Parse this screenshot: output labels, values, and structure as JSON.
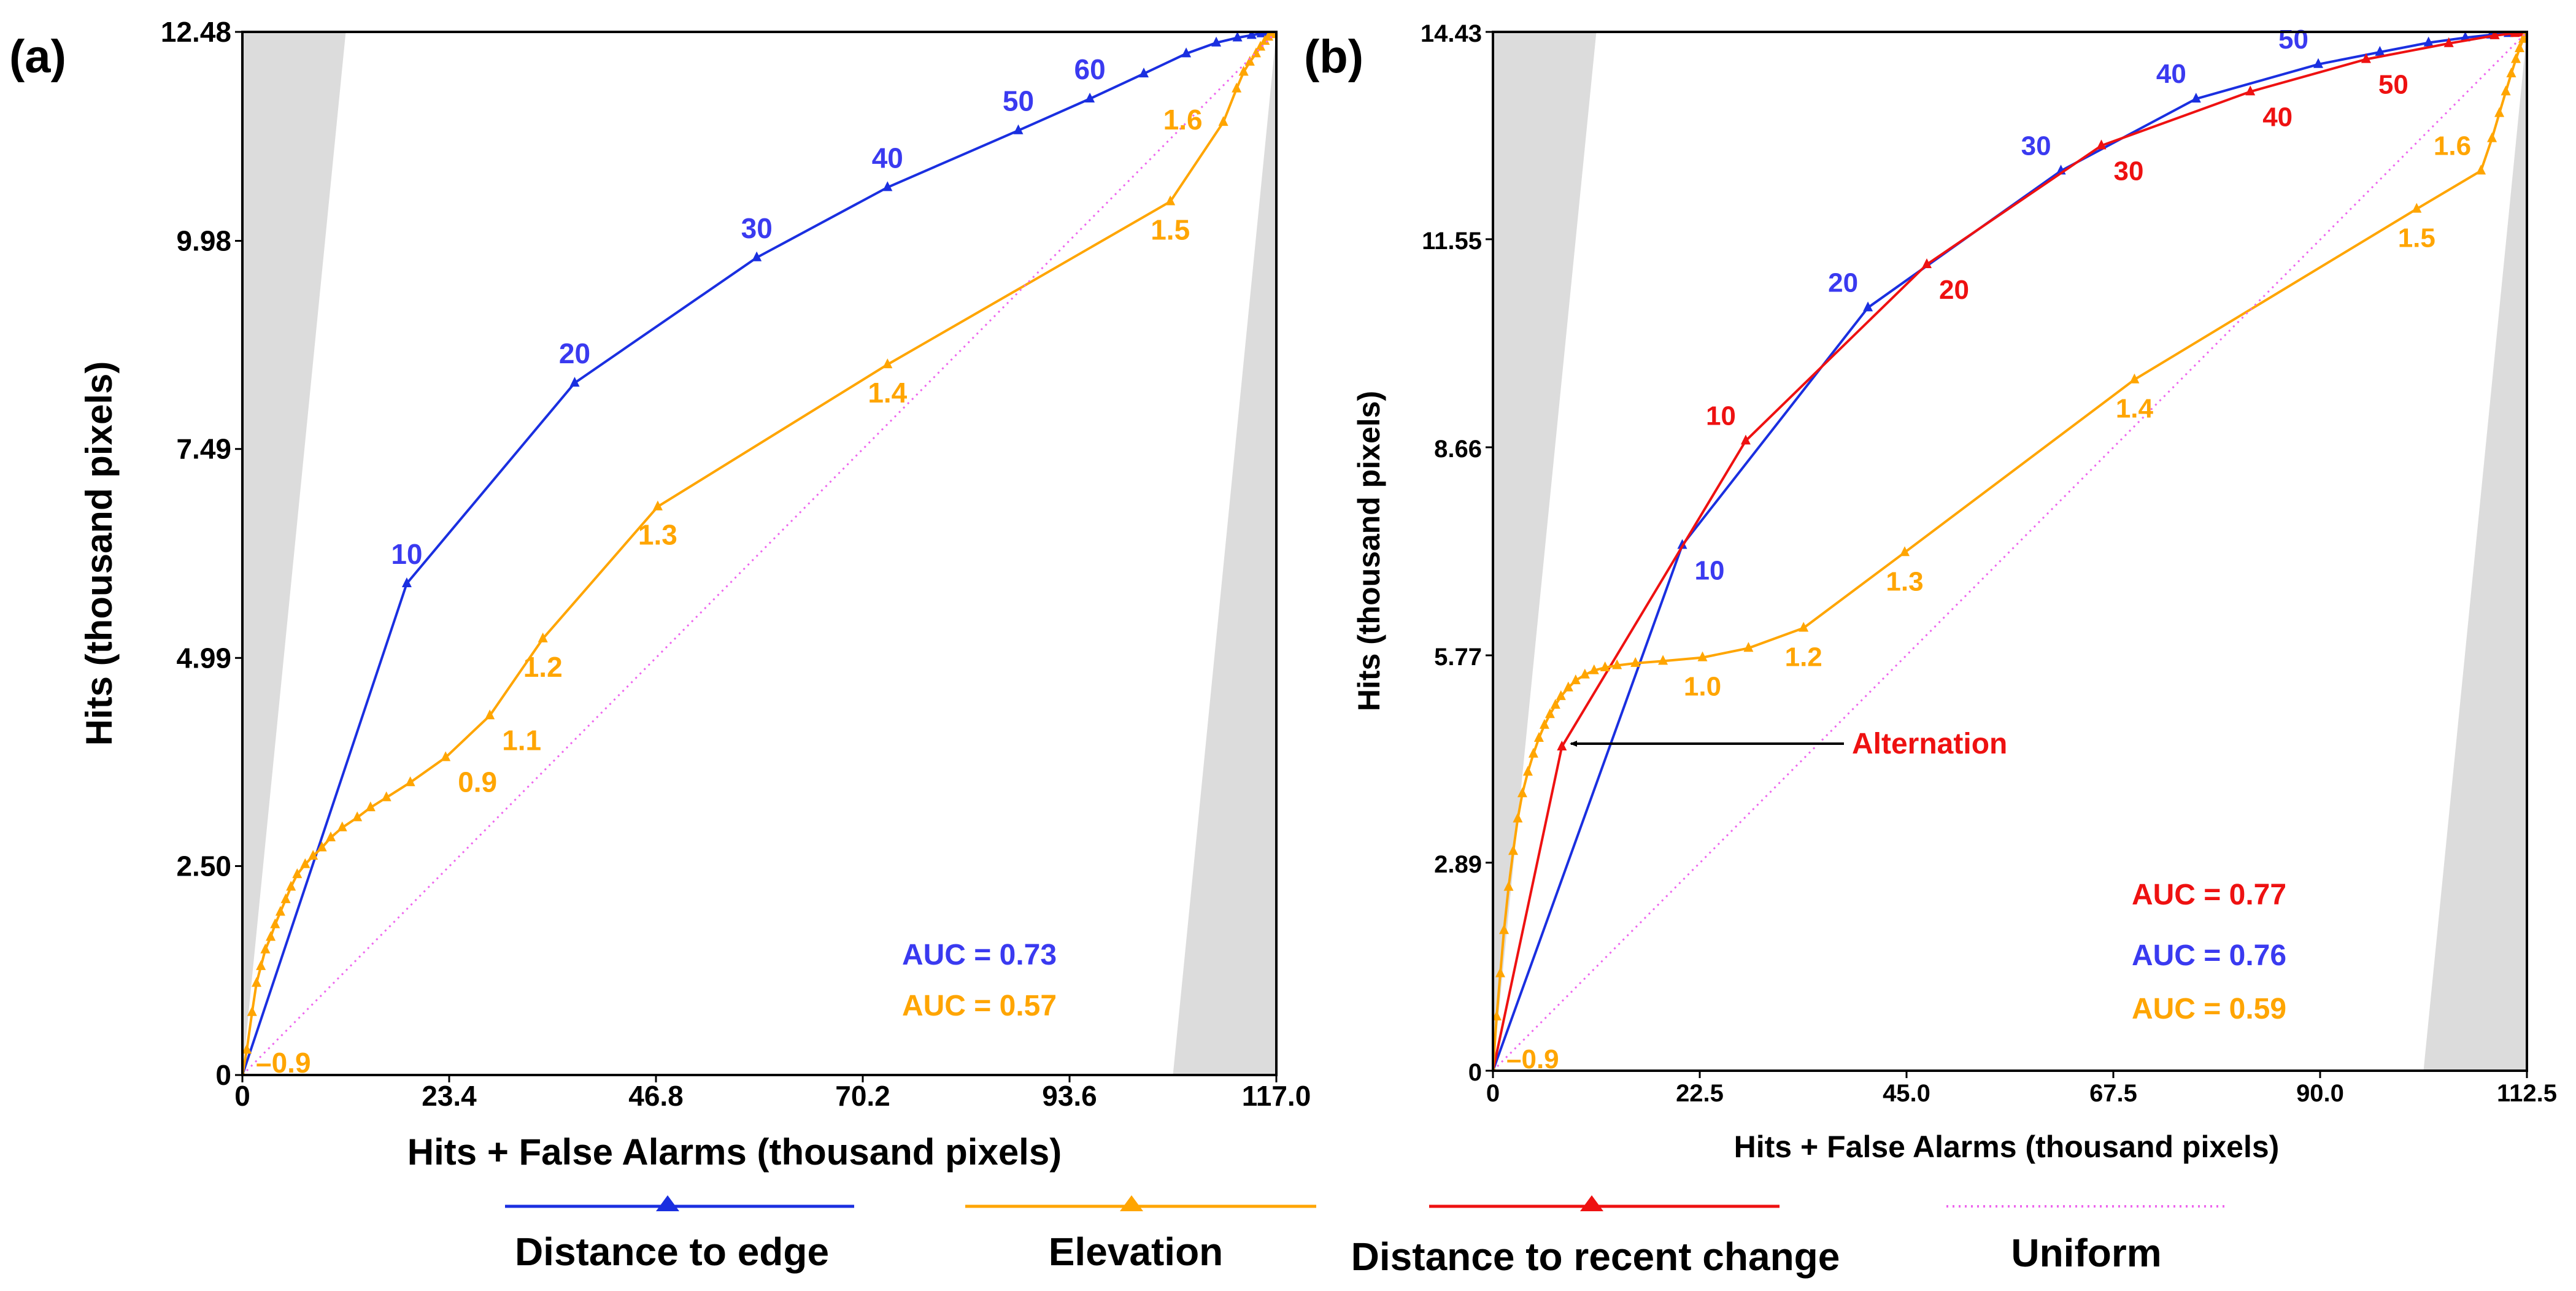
{
  "colors": {
    "distance_to_edge": "#1a2fe0",
    "elevation": "#ffa500",
    "distance_to_recent_change": "#ee1111",
    "uniform": "#ee66ee",
    "region": "#dcdcdc",
    "axis": "#000000",
    "label_blue": "#3a3af0",
    "label_orange": "#ffa500",
    "label_red": "#ee1111"
  },
  "legend": {
    "distance_to_edge": "Distance to edge",
    "elevation": "Elevation",
    "distance_to_recent_change": "Distance to recent change",
    "uniform": "Uniform"
  },
  "chart_data": [
    {
      "panel_label": "(a)",
      "type": "line",
      "xlabel": "Hits + False Alarms (thousand pixels)",
      "ylabel": "Hits (thousand pixels)",
      "xlim": [
        0,
        117.0
      ],
      "ylim": [
        0,
        12.48
      ],
      "x_ticks": [
        0,
        23.4,
        46.8,
        70.2,
        93.6,
        117.0
      ],
      "x_tick_labels": [
        "0",
        "23.4",
        "46.8",
        "70.2",
        "93.6",
        "117.0"
      ],
      "y_ticks": [
        0,
        2.5,
        4.99,
        7.49,
        9.98,
        12.48
      ],
      "y_tick_labels": [
        "0",
        "2.50",
        "4.99",
        "7.49",
        "9.98",
        "12.48"
      ],
      "grid": false,
      "series": [
        {
          "key": "distance_to_edge",
          "name": "Distance to edge",
          "x": [
            0,
            18.6,
            37.6,
            58.2,
            73.0,
            87.8,
            95.9,
            102.0,
            106.8,
            110.2,
            112.6,
            114.2,
            115.3,
            116.0,
            116.5,
            117.0
          ],
          "y": [
            0,
            5.88,
            8.28,
            9.78,
            10.62,
            11.3,
            11.68,
            11.98,
            12.22,
            12.35,
            12.41,
            12.44,
            12.46,
            12.47,
            12.48,
            12.48
          ],
          "point_labels": [
            {
              "text": "10",
              "x": 18.6,
              "y": 5.88,
              "pos": "above"
            },
            {
              "text": "20",
              "x": 37.6,
              "y": 8.28,
              "pos": "above"
            },
            {
              "text": "30",
              "x": 58.2,
              "y": 9.78,
              "pos": "above"
            },
            {
              "text": "40",
              "x": 73.0,
              "y": 10.62,
              "pos": "above"
            },
            {
              "text": "50",
              "x": 87.8,
              "y": 11.3,
              "pos": "above"
            },
            {
              "text": "60",
              "x": 95.9,
              "y": 11.68,
              "pos": "above"
            }
          ]
        },
        {
          "key": "elevation",
          "name": "Elevation",
          "x": [
            0,
            0.5,
            1.1,
            1.6,
            2.1,
            2.6,
            3.2,
            3.7,
            4.3,
            4.9,
            5.5,
            6.2,
            7.1,
            8.0,
            9.0,
            10.0,
            11.3,
            13.0,
            14.5,
            16.3,
            19.0,
            23.0,
            28.0,
            34.0,
            47.0,
            73.0,
            105.0,
            111.0,
            112.5,
            113.3,
            114.0,
            114.7,
            115.2,
            115.7,
            116.1,
            116.5,
            116.8,
            117.0
          ],
          "y": [
            0,
            0.3,
            0.75,
            1.1,
            1.3,
            1.5,
            1.65,
            1.8,
            1.95,
            2.1,
            2.25,
            2.4,
            2.52,
            2.62,
            2.72,
            2.84,
            2.96,
            3.08,
            3.2,
            3.32,
            3.5,
            3.8,
            4.3,
            5.22,
            6.8,
            8.5,
            10.45,
            11.4,
            11.8,
            12.0,
            12.12,
            12.22,
            12.3,
            12.37,
            12.42,
            12.45,
            12.47,
            12.48
          ],
          "point_labels": [
            {
              "text": "0.9",
              "x": 23.0,
              "y": 3.8,
              "pos": "below-right"
            },
            {
              "text": "1.1",
              "x": 28.0,
              "y": 4.3,
              "pos": "below-right"
            },
            {
              "text": "1.2",
              "x": 34.0,
              "y": 5.22,
              "pos": "below"
            },
            {
              "text": "1.3",
              "x": 47.0,
              "y": 6.8,
              "pos": "below"
            },
            {
              "text": "1.4",
              "x": 73.0,
              "y": 8.5,
              "pos": "below"
            },
            {
              "text": "1.5",
              "x": 105.0,
              "y": 10.45,
              "pos": "below"
            },
            {
              "text": "1.6",
              "x": 111.0,
              "y": 11.4,
              "pos": "left"
            }
          ],
          "start_label": "–0.9"
        },
        {
          "key": "uniform",
          "name": "Uniform",
          "x": [
            0,
            117.0
          ],
          "y": [
            0,
            12.48
          ]
        }
      ],
      "annotations": [
        {
          "text": "AUC = 0.73",
          "color_key": "label_blue"
        },
        {
          "text": "AUC = 0.57",
          "color_key": "label_orange"
        }
      ]
    },
    {
      "panel_label": "(b)",
      "type": "line",
      "xlabel": "Hits + False Alarms (thousand pixels)",
      "ylabel": "Hits (thousand pixels)",
      "xlim": [
        0,
        112.5
      ],
      "ylim": [
        0,
        14.43
      ],
      "x_ticks": [
        0,
        22.5,
        45.0,
        67.5,
        90.0,
        112.5
      ],
      "x_tick_labels": [
        "0",
        "22.5",
        "45.0",
        "67.5",
        "90.0",
        "112.5"
      ],
      "y_ticks": [
        0,
        2.89,
        5.77,
        8.66,
        11.55,
        14.43
      ],
      "y_tick_labels": [
        "0",
        "2.89",
        "5.77",
        "8.66",
        "11.55",
        "14.43"
      ],
      "grid": false,
      "series": [
        {
          "key": "distance_to_edge",
          "name": "Distance to edge",
          "x": [
            0,
            20.6,
            40.8,
            61.8,
            76.5,
            89.8,
            96.5,
            101.8,
            105.8,
            108.6,
            110.5,
            111.6,
            112.2,
            112.5
          ],
          "y": [
            0,
            7.3,
            10.6,
            12.5,
            13.5,
            13.98,
            14.15,
            14.28,
            14.35,
            14.39,
            14.41,
            14.42,
            14.43,
            14.43
          ],
          "point_labels": [
            {
              "text": "10",
              "x": 20.6,
              "y": 7.3,
              "pos": "below-right"
            },
            {
              "text": "20",
              "x": 40.8,
              "y": 10.6,
              "pos": "above-left"
            },
            {
              "text": "30",
              "x": 61.8,
              "y": 12.5,
              "pos": "above-left"
            },
            {
              "text": "40",
              "x": 76.5,
              "y": 13.5,
              "pos": "above-left"
            },
            {
              "text": "50",
              "x": 89.8,
              "y": 13.98,
              "pos": "above-left"
            }
          ]
        },
        {
          "key": "distance_to_recent_change",
          "name": "Distance to recent change",
          "x": [
            0,
            7.5,
            27.5,
            47.2,
            66.2,
            82.4,
            95.0,
            104.0,
            109.0,
            111.2,
            112.0,
            112.5
          ],
          "y": [
            0,
            4.5,
            8.75,
            11.2,
            12.85,
            13.6,
            14.05,
            14.27,
            14.38,
            14.41,
            14.42,
            14.43
          ],
          "point_labels": [
            {
              "text": "10",
              "x": 27.5,
              "y": 8.75,
              "pos": "above-left"
            },
            {
              "text": "20",
              "x": 47.2,
              "y": 11.2,
              "pos": "below-right"
            },
            {
              "text": "30",
              "x": 66.2,
              "y": 12.85,
              "pos": "below-right"
            },
            {
              "text": "40",
              "x": 82.4,
              "y": 13.6,
              "pos": "below-right"
            },
            {
              "text": "50",
              "x": 95.0,
              "y": 14.05,
              "pos": "below-right"
            }
          ]
        },
        {
          "key": "elevation",
          "name": "Elevation",
          "x": [
            0,
            0.4,
            0.8,
            1.2,
            1.7,
            2.2,
            2.7,
            3.2,
            3.8,
            4.4,
            5.0,
            5.6,
            6.2,
            6.8,
            7.4,
            8.2,
            9.0,
            10.0,
            11.0,
            12.2,
            13.5,
            15.5,
            18.5,
            22.8,
            27.8,
            33.8,
            44.8,
            69.8,
            100.5,
            107.5,
            108.7,
            109.5,
            110.2,
            110.8,
            111.3,
            111.7,
            112.1,
            112.5
          ],
          "y": [
            0,
            0.75,
            1.35,
            1.95,
            2.55,
            3.05,
            3.5,
            3.85,
            4.15,
            4.4,
            4.62,
            4.8,
            4.95,
            5.08,
            5.2,
            5.32,
            5.42,
            5.5,
            5.56,
            5.6,
            5.63,
            5.66,
            5.69,
            5.74,
            5.87,
            6.15,
            7.2,
            9.6,
            11.97,
            12.5,
            12.95,
            13.3,
            13.6,
            13.85,
            14.05,
            14.2,
            14.33,
            14.43
          ],
          "point_labels": [
            {
              "text": "1.0",
              "x": 22.8,
              "y": 5.74,
              "pos": "below"
            },
            {
              "text": "1.2",
              "x": 33.8,
              "y": 6.15,
              "pos": "below"
            },
            {
              "text": "1.3",
              "x": 44.8,
              "y": 7.2,
              "pos": "below"
            },
            {
              "text": "1.4",
              "x": 69.8,
              "y": 9.6,
              "pos": "below"
            },
            {
              "text": "1.5",
              "x": 100.5,
              "y": 11.97,
              "pos": "below"
            },
            {
              "text": "1.6",
              "x": 107.5,
              "y": 12.5,
              "pos": "above-left"
            }
          ],
          "start_label": "–0.9"
        },
        {
          "key": "uniform",
          "name": "Uniform",
          "x": [
            0,
            112.5
          ],
          "y": [
            0,
            14.43
          ]
        }
      ],
      "annotations": [
        {
          "text": "AUC = 0.77",
          "color_key": "label_red"
        },
        {
          "text": "AUC = 0.76",
          "color_key": "label_blue"
        },
        {
          "text": "AUC = 0.59",
          "color_key": "label_orange"
        },
        {
          "text": "Alternation",
          "color_key": "label_red",
          "arrow_to": {
            "x": 7.5,
            "y": 4.5
          }
        }
      ]
    }
  ]
}
